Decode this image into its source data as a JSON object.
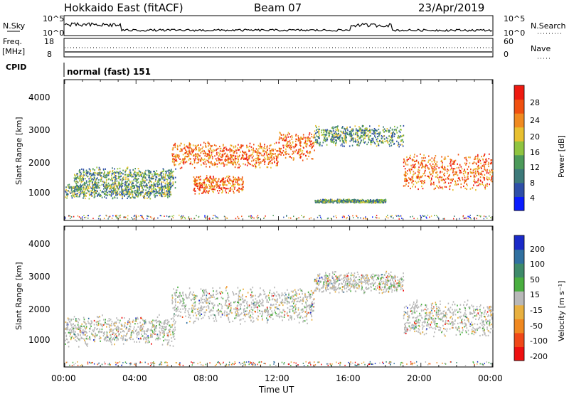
{
  "header": {
    "station": "Hokkaido East (fitACF)",
    "beam": "Beam 07",
    "date": "23/Apr/2019"
  },
  "strip": {
    "nsky_label": "N.Sky",
    "nsearch_label": "N.Search",
    "nsky_ticks": [
      "10^5",
      "10^0"
    ],
    "nsearch_ticks": [
      "10^5",
      "10^0"
    ],
    "freq_label": "Freq.",
    "freq_unit": "[MHz]",
    "freq_ticks": [
      "18",
      "8"
    ],
    "nave_label": "Nave",
    "nave_ticks": [
      "60",
      "0"
    ],
    "cpid_label": "CPID",
    "cpid_text": "normal (fast) 151"
  },
  "axes": {
    "ylabel": "Slant Range [km]",
    "y_ticks": [
      "1000",
      "2000",
      "3000",
      "4000"
    ],
    "x_ticks": [
      "00:00",
      "04:00",
      "08:00",
      "12:00",
      "16:00",
      "20:00",
      "00:00"
    ],
    "xlabel": "Time UT"
  },
  "power_colorbar": {
    "label": "Power [dB]",
    "ticks": [
      "4",
      "8",
      "12",
      "16",
      "20",
      "24",
      "28"
    ],
    "colors": [
      "#0a1cff",
      "#2e4fa8",
      "#3d7a7a",
      "#4c9a5a",
      "#8fc440",
      "#e8c030",
      "#f08a20",
      "#f05010",
      "#ee1a10"
    ]
  },
  "velocity_colorbar": {
    "label": "Velocity [m s⁻¹]",
    "ticks": [
      "200",
      "100",
      "50",
      "15",
      "-15",
      "-50",
      "-100",
      "-200"
    ],
    "colors": [
      "#1a2ac8",
      "#3070a0",
      "#3e8a6a",
      "#4aae40",
      "#b8b8b8",
      "#e8b040",
      "#f08820",
      "#f04818",
      "#ee1010"
    ]
  },
  "chart_data": [
    {
      "type": "heatmap",
      "name_hint": "power panel",
      "xlabel": "Time UT",
      "ylabel": "Slant Range [km]",
      "xlim": [
        0,
        24
      ],
      "ylim": [
        180,
        4500
      ],
      "colorbar_label": "Power [dB]",
      "scatter_regions": [
        {
          "x0": 0.0,
          "x1": 6.0,
          "y_center": 1100,
          "y_width": 260,
          "value_hint": "8-12 dB"
        },
        {
          "x0": 0.5,
          "x1": 6.2,
          "y_center": 1500,
          "y_width": 350,
          "value_hint": "12-20 dB"
        },
        {
          "x0": 6.0,
          "x1": 12.0,
          "y_center": 2200,
          "y_width": 420,
          "value_hint": "20-28 dB"
        },
        {
          "x0": 7.2,
          "x1": 10.0,
          "y_center": 1300,
          "y_width": 300,
          "value_hint": "20-28 dB"
        },
        {
          "x0": 12.0,
          "x1": 14.0,
          "y_center": 2500,
          "y_width": 500,
          "value_hint": "20-28 dB"
        },
        {
          "x0": 14.0,
          "x1": 19.0,
          "y_center": 2800,
          "y_width": 350,
          "value_hint": "16-24 dB"
        },
        {
          "x0": 19.0,
          "x1": 24.0,
          "y_center": 1700,
          "y_width": 600,
          "value_hint": "16-28 dB"
        },
        {
          "x0": 14.0,
          "x1": 18.0,
          "y_center": 780,
          "y_width": 60,
          "value_hint": "16-20 dB"
        }
      ]
    },
    {
      "type": "heatmap",
      "name_hint": "velocity panel",
      "xlabel": "Time UT",
      "ylabel": "Slant Range [km]",
      "xlim": [
        0,
        24
      ],
      "ylim": [
        180,
        4500
      ],
      "colorbar_label": "Velocity [m s⁻¹]",
      "scatter_regions": [
        {
          "x0": 0.0,
          "x1": 6.2,
          "y_center": 1300,
          "y_width": 500,
          "value_hint": "-15 to 15"
        },
        {
          "x0": 6.0,
          "x1": 14.0,
          "y_center": 2100,
          "y_width": 600,
          "value_hint": "-15 to 15"
        },
        {
          "x0": 14.0,
          "x1": 19.0,
          "y_center": 2800,
          "y_width": 350,
          "value_hint": "-15 to 50"
        },
        {
          "x0": 19.0,
          "x1": 24.0,
          "y_center": 1700,
          "y_width": 600,
          "value_hint": "-50 to 50"
        }
      ]
    }
  ]
}
